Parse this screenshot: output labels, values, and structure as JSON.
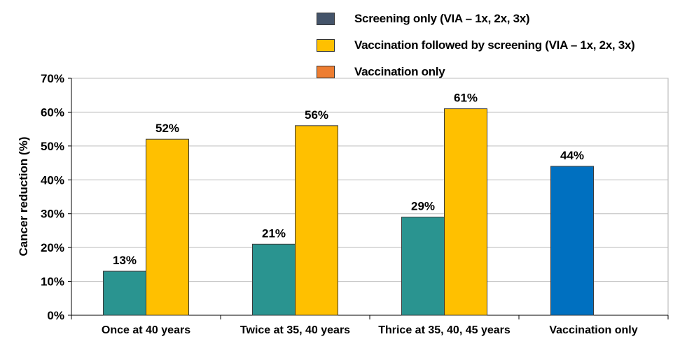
{
  "legend": [
    {
      "label": "Screening only (VIA – 1x, 2x, 3x)",
      "color": "#44546a"
    },
    {
      "label": "Vaccination followed by screening (VIA – 1x, 2x, 3x)",
      "color": "#ffc000"
    },
    {
      "label": "Vaccination only",
      "color": "#ed7d31"
    }
  ],
  "chart_data": {
    "type": "bar",
    "ylabel": "Cancer reduction (%)",
    "ylim": [
      0,
      70
    ],
    "yticks": [
      0,
      10,
      20,
      30,
      40,
      50,
      60,
      70
    ],
    "ytick_labels": [
      "0%",
      "10%",
      "20%",
      "30%",
      "40%",
      "50%",
      "60%",
      "70%"
    ],
    "grid": true,
    "legend_position": "top",
    "categories": [
      "Once at 40 years",
      "Twice at 35, 40 years",
      "Thrice at 35, 40, 45 years",
      "Vaccination only"
    ],
    "bars": [
      {
        "category": 0,
        "slot": 0,
        "value": 13,
        "label": "13%",
        "color": "#2a9490"
      },
      {
        "category": 0,
        "slot": 1,
        "value": 52,
        "label": "52%",
        "color": "#ffc000"
      },
      {
        "category": 1,
        "slot": 0,
        "value": 21,
        "label": "21%",
        "color": "#2a9490"
      },
      {
        "category": 1,
        "slot": 1,
        "value": 56,
        "label": "56%",
        "color": "#ffc000"
      },
      {
        "category": 2,
        "slot": 0,
        "value": 29,
        "label": "29%",
        "color": "#2a9490"
      },
      {
        "category": 2,
        "slot": 1,
        "value": 61,
        "label": "61%",
        "color": "#ffc000"
      },
      {
        "category": 3,
        "slot": 0,
        "value": 44,
        "label": "44%",
        "color": "#0070c0"
      }
    ]
  }
}
